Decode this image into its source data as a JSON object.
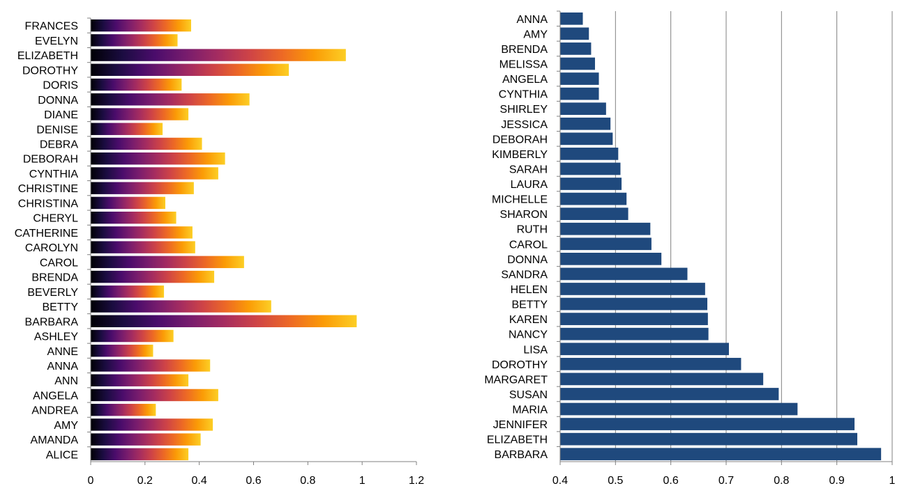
{
  "colors": {
    "axis": "#808080",
    "grid": "#808080",
    "right_bar": "#1f497d",
    "gradient_stops": [
      "#000004",
      "#1b0c41",
      "#4a0c6b",
      "#781c6d",
      "#a52c60",
      "#cf4446",
      "#ed6925",
      "#fb9b06",
      "#fcce25"
    ]
  },
  "chart_data": [
    {
      "type": "bar",
      "orientation": "horizontal",
      "bar_style": "gradient",
      "categories": [
        "FRANCES",
        "EVELYN",
        "ELIZABETH",
        "DOROTHY",
        "DORIS",
        "DONNA",
        "DIANE",
        "DENISE",
        "DEBRA",
        "DEBORAH",
        "CYNTHIA",
        "CHRISTINE",
        "CHRISTINA",
        "CHERYL",
        "CATHERINE",
        "CAROLYN",
        "CAROL",
        "BRENDA",
        "BEVERLY",
        "BETTY",
        "BARBARA",
        "ASHLEY",
        "ANNE",
        "ANNA",
        "ANN",
        "ANGELA",
        "ANDREA",
        "AMY",
        "AMANDA",
        "ALICE"
      ],
      "values": [
        0.37,
        0.32,
        0.94,
        0.73,
        0.335,
        0.585,
        0.36,
        0.265,
        0.41,
        0.495,
        0.47,
        0.38,
        0.275,
        0.315,
        0.375,
        0.385,
        0.565,
        0.455,
        0.27,
        0.665,
        0.98,
        0.305,
        0.23,
        0.44,
        0.36,
        0.47,
        0.24,
        0.45,
        0.405,
        0.36
      ],
      "xlim": [
        0,
        1.2
      ],
      "xticks": [
        "0",
        "0.2",
        "0.4",
        "0.6",
        "0.8",
        "1",
        "1.2"
      ],
      "grid": false
    },
    {
      "type": "bar",
      "orientation": "horizontal",
      "bar_style": "solid",
      "categories": [
        "ANNA",
        "AMY",
        "BRENDA",
        "MELISSA",
        "ANGELA",
        "CYNTHIA",
        "SHIRLEY",
        "JESSICA",
        "DEBORAH",
        "KIMBERLY",
        "SARAH",
        "LAURA",
        "MICHELLE",
        "SHARON",
        "RUTH",
        "CAROL",
        "DONNA",
        "SANDRA",
        "HELEN",
        "BETTY",
        "KAREN",
        "NANCY",
        "LISA",
        "DOROTHY",
        "MARGARET",
        "SUSAN",
        "MARIA",
        "JENNIFER",
        "ELIZABETH",
        "BARBARA"
      ],
      "values": [
        0.441,
        0.452,
        0.456,
        0.463,
        0.47,
        0.47,
        0.483,
        0.491,
        0.495,
        0.505,
        0.509,
        0.511,
        0.52,
        0.523,
        0.563,
        0.565,
        0.583,
        0.63,
        0.662,
        0.666,
        0.667,
        0.668,
        0.705,
        0.727,
        0.767,
        0.795,
        0.829,
        0.932,
        0.937,
        0.98
      ],
      "xlim": [
        0.4,
        1.0
      ],
      "xticks": [
        "0.4",
        "0.5",
        "0.6",
        "0.7",
        "0.8",
        "0.9",
        "1"
      ],
      "grid": true
    }
  ]
}
